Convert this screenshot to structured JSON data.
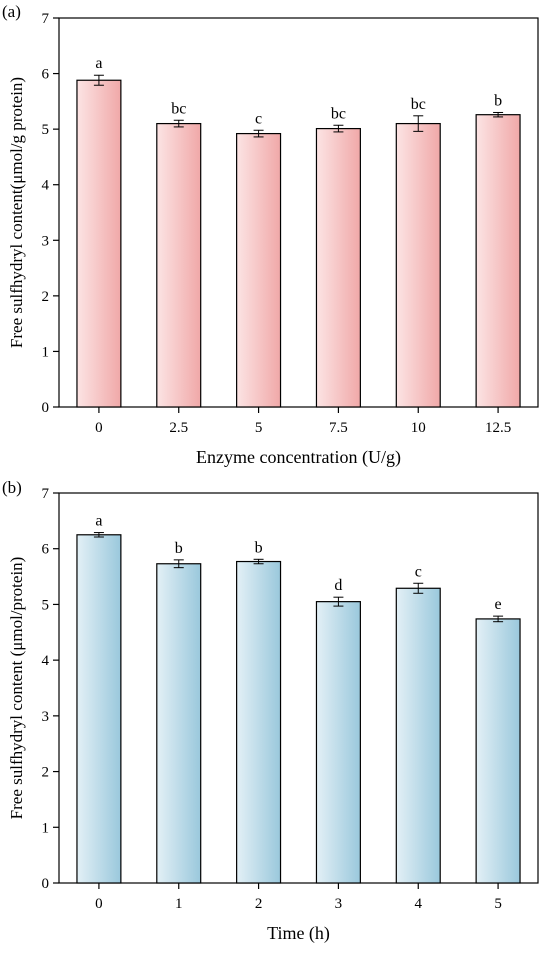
{
  "chart_data": [
    {
      "type": "bar",
      "panel_label": "(a)",
      "xlabel": "Enzyme concentration (U/g)",
      "ylabel": "Free sulfhydryl content(μmol/g protein)",
      "categories": [
        "0",
        "2.5",
        "5",
        "7.5",
        "10",
        "12.5"
      ],
      "values": [
        5.88,
        5.1,
        4.92,
        5.01,
        5.1,
        5.26
      ],
      "errors": [
        0.09,
        0.06,
        0.06,
        0.06,
        0.14,
        0.04
      ],
      "letters": [
        "a",
        "bc",
        "c",
        "bc",
        "bc",
        "b"
      ],
      "ylim": [
        0,
        7
      ],
      "yticks": [
        "0",
        "1",
        "2",
        "3",
        "4",
        "5",
        "6",
        "7"
      ],
      "colors": {
        "bar_light": "#fce4e4",
        "bar_dark": "#f0a8a8"
      }
    },
    {
      "type": "bar",
      "panel_label": "(b)",
      "xlabel": "Time (h)",
      "ylabel": "Free sulfhydryl content (μmol/protein)",
      "categories": [
        "0",
        "1",
        "2",
        "3",
        "4",
        "5"
      ],
      "values": [
        6.25,
        5.73,
        5.77,
        5.05,
        5.29,
        4.74
      ],
      "errors": [
        0.04,
        0.07,
        0.04,
        0.08,
        0.09,
        0.05
      ],
      "letters": [
        "a",
        "b",
        "b",
        "d",
        "c",
        "e"
      ],
      "ylim": [
        0,
        7
      ],
      "yticks": [
        "0",
        "1",
        "2",
        "3",
        "4",
        "5",
        "6",
        "7"
      ],
      "colors": {
        "bar_light": "#e3f0f6",
        "bar_dark": "#9ac8dc"
      }
    }
  ]
}
